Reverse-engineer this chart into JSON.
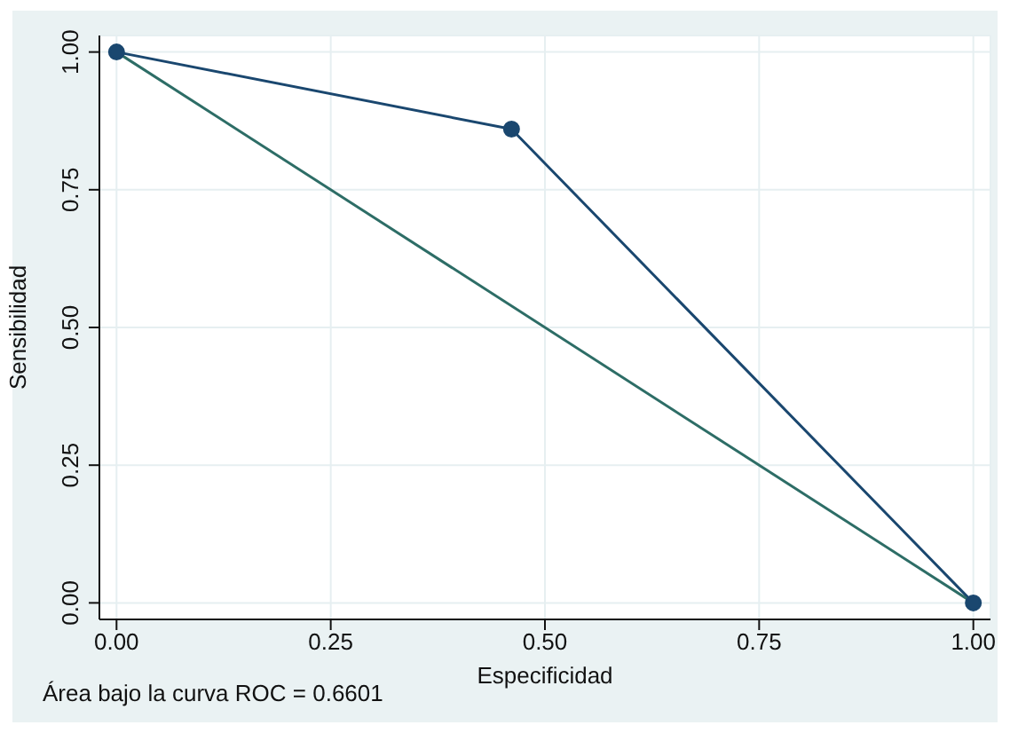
{
  "chart_data": {
    "type": "line",
    "xlabel": "Especificidad",
    "ylabel": "Sensibilidad",
    "annotations": [
      "Área bajo la curva ROC = 0.6601"
    ],
    "xlim": [
      -0.02,
      1.02
    ],
    "ylim": [
      -0.03,
      1.03
    ],
    "xticks": [
      {
        "value": 0,
        "label": "0.00"
      },
      {
        "value": 0.25,
        "label": "0.25"
      },
      {
        "value": 0.5,
        "label": "0.50"
      },
      {
        "value": 0.75,
        "label": "0.75"
      },
      {
        "value": 1,
        "label": "1.00"
      }
    ],
    "yticks": [
      {
        "value": 0,
        "label": "0.00"
      },
      {
        "value": 0.25,
        "label": "0.25"
      },
      {
        "value": 0.5,
        "label": "0.50"
      },
      {
        "value": 0.75,
        "label": "0.75"
      },
      {
        "value": 1,
        "label": "1.00"
      }
    ],
    "grid": true,
    "marker": "circle",
    "line_style": "solid",
    "series": [
      {
        "color": "#1a476f",
        "x": [
          0,
          0.461,
          1
        ],
        "values": [
          1,
          0.86,
          0
        ]
      },
      {
        "color": "#2d6d66",
        "marker": "none",
        "x": [
          0,
          1
        ],
        "values": [
          1,
          0
        ]
      }
    ]
  }
}
